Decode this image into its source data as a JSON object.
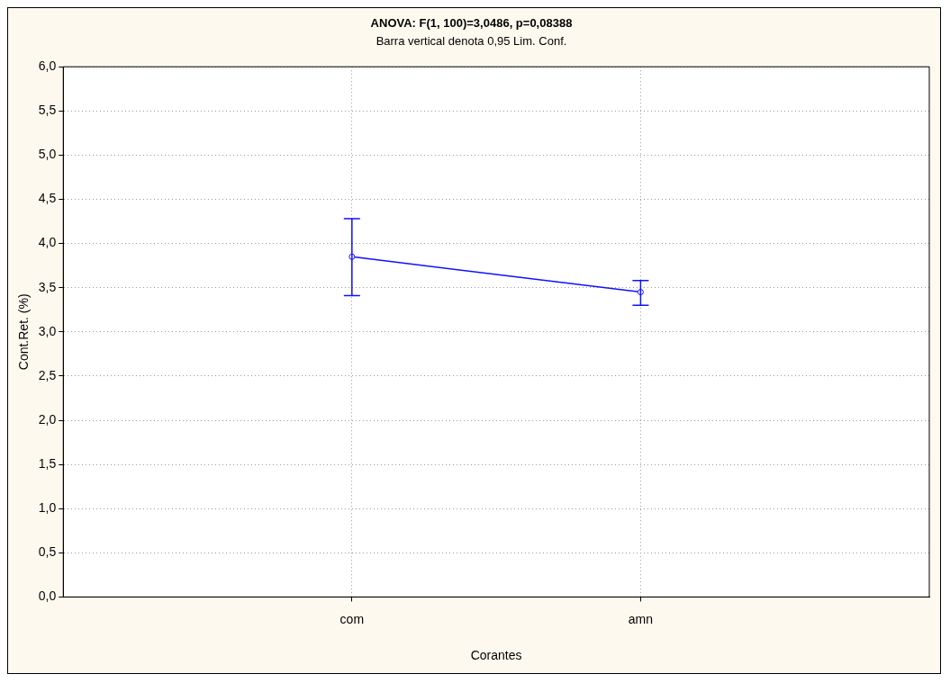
{
  "chart_data": {
    "type": "line",
    "title": "ANOVA: F(1, 100)=3,0486, p=0,08388",
    "subtitle": "Barra vertical denota 0,95 Lim. Conf.",
    "xlabel": "Corantes",
    "ylabel": "Cont.Ret. (%)",
    "categories": [
      "com",
      "amn"
    ],
    "series": [
      {
        "color": "#1010ff",
        "values": [
          3.85,
          3.45
        ],
        "errors": [
          [
            3.41,
            4.28
          ],
          [
            3.3,
            3.58
          ]
        ]
      }
    ],
    "ylim": [
      0,
      6
    ],
    "yticks": [
      {
        "value": 0,
        "label": "0,0"
      },
      {
        "value": 0.5,
        "label": "0,5"
      },
      {
        "value": 1,
        "label": "1,0"
      },
      {
        "value": 1.5,
        "label": "1,5"
      },
      {
        "value": 2,
        "label": "2,0"
      },
      {
        "value": 2.5,
        "label": "2,5"
      },
      {
        "value": 3,
        "label": "3,0"
      },
      {
        "value": 3.5,
        "label": "3,5"
      },
      {
        "value": 4,
        "label": "4,0"
      },
      {
        "value": 4.5,
        "label": "4,5"
      },
      {
        "value": 5,
        "label": "5,0"
      },
      {
        "value": 5.5,
        "label": "5,5"
      },
      {
        "value": 6,
        "label": "6,0"
      }
    ],
    "grid": true,
    "legend": false,
    "marker": "circle",
    "line_style": "solid"
  }
}
